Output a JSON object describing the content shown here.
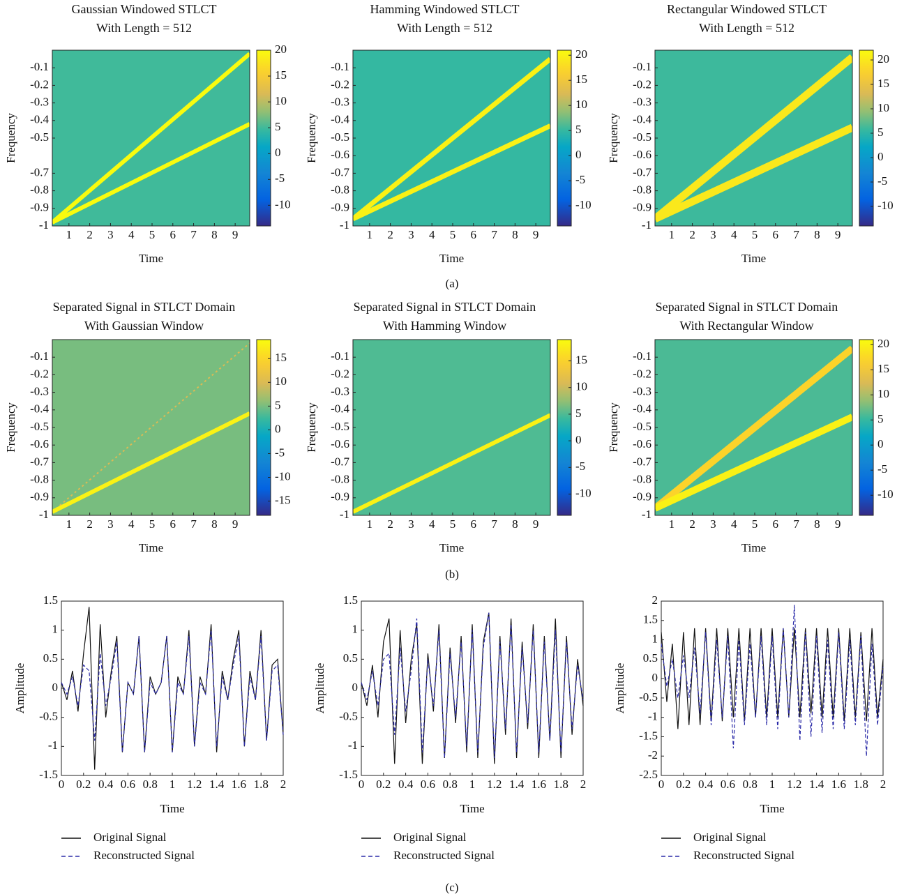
{
  "panel_labels": [
    "(a)",
    "(b)",
    "(c)"
  ],
  "chart_data": [
    {
      "type": "heatmap",
      "title": [
        "Gaussian Windowed STLCT",
        "With Length = 512"
      ],
      "xlabel": "Time",
      "ylabel": "Frequency",
      "colormap": "parula",
      "xlim": [
        0.2,
        9.7
      ],
      "ylim": [
        -1,
        0
      ],
      "xticks": [
        1,
        2,
        3,
        4,
        5,
        6,
        7,
        8,
        9
      ],
      "yticks": [
        -0.1,
        -0.2,
        -0.3,
        -0.4,
        -0.5,
        -0.7,
        -0.8,
        -0.9,
        -1
      ],
      "clim": [
        -14,
        20
      ],
      "cticks": [
        20,
        15,
        10,
        5,
        0,
        -5,
        -10
      ],
      "background": 5,
      "ridges": [
        {
          "x": [
            0.2,
            9.7
          ],
          "y": [
            -0.98,
            -0.02
          ],
          "value": 20
        },
        {
          "x": [
            0.2,
            9.7
          ],
          "y": [
            -0.98,
            -0.42
          ],
          "value": 20
        }
      ]
    },
    {
      "type": "heatmap",
      "title": [
        "Hamming Windowed STLCT",
        "With Length = 512"
      ],
      "xlabel": "Time",
      "ylabel": "Frequency",
      "colormap": "parula",
      "xlim": [
        0.2,
        9.7
      ],
      "ylim": [
        -1,
        0
      ],
      "xticks": [
        1,
        2,
        3,
        4,
        5,
        6,
        7,
        8,
        9
      ],
      "yticks": [
        -0.1,
        -0.2,
        -0.3,
        -0.4,
        -0.5,
        -0.6,
        -0.7,
        -0.8,
        -0.9,
        -1
      ],
      "clim": [
        -14,
        21
      ],
      "cticks": [
        20,
        15,
        10,
        5,
        0,
        -5,
        -10
      ],
      "background": 5,
      "ridges": [
        {
          "x": [
            0.2,
            9.7
          ],
          "y": [
            -0.96,
            -0.05
          ],
          "value": 20
        },
        {
          "x": [
            0.2,
            9.7
          ],
          "y": [
            -0.96,
            -0.43
          ],
          "value": 20
        }
      ]
    },
    {
      "type": "heatmap",
      "title": [
        "Rectangular Windowed STLCT",
        "With Length = 512"
      ],
      "xlabel": "Time",
      "ylabel": "Frequency",
      "colormap": "parula",
      "xlim": [
        0.2,
        9.7
      ],
      "ylim": [
        -1,
        0
      ],
      "xticks": [
        1,
        2,
        3,
        4,
        5,
        6,
        7,
        8,
        9
      ],
      "yticks": [
        -0.1,
        -0.2,
        -0.3,
        -0.4,
        -0.5,
        -0.6,
        -0.7,
        -0.8,
        -0.9,
        -1
      ],
      "clim": [
        -14,
        22
      ],
      "cticks": [
        20,
        15,
        10,
        5,
        0,
        -5,
        -10
      ],
      "background": 6,
      "ridges": [
        {
          "x": [
            0.2,
            9.7
          ],
          "y": [
            -0.96,
            -0.04
          ],
          "value": 20
        },
        {
          "x": [
            0.2,
            9.7
          ],
          "y": [
            -0.96,
            -0.44
          ],
          "value": 20
        }
      ]
    },
    {
      "type": "heatmap",
      "title": [
        "Separated Signal in STLCT Domain",
        "With Gaussian Window"
      ],
      "xlabel": "Time",
      "ylabel": "Frequency",
      "colormap": "parula",
      "xlim": [
        0.2,
        9.7
      ],
      "ylim": [
        -1,
        0
      ],
      "xticks": [
        1,
        2,
        3,
        4,
        5,
        6,
        7,
        8,
        9
      ],
      "yticks": [
        -0.1,
        -0.2,
        -0.3,
        -0.4,
        -0.5,
        -0.6,
        -0.7,
        -0.8,
        -0.9,
        -1
      ],
      "clim": [
        -18,
        19
      ],
      "cticks": [
        15,
        10,
        5,
        0,
        -5,
        -10,
        -15
      ],
      "background": 5,
      "ridges": [
        {
          "x": [
            0.2,
            9.7
          ],
          "y": [
            -0.98,
            -0.02
          ],
          "value": 10
        },
        {
          "x": [
            0.2,
            9.7
          ],
          "y": [
            -0.98,
            -0.42
          ],
          "value": 18
        }
      ]
    },
    {
      "type": "heatmap",
      "title": [
        "Separated Signal in STLCT Domain",
        "With Hamming Window"
      ],
      "xlabel": "Time",
      "ylabel": "Frequency",
      "colormap": "parula",
      "xlim": [
        0.2,
        9.7
      ],
      "ylim": [
        -1,
        0
      ],
      "xticks": [
        1,
        2,
        3,
        4,
        5,
        6,
        7,
        8,
        9
      ],
      "yticks": [
        -0.1,
        -0.2,
        -0.3,
        -0.4,
        -0.5,
        -0.6,
        -0.7,
        -0.8,
        -0.9,
        -1
      ],
      "clim": [
        -14,
        19
      ],
      "cticks": [
        15,
        10,
        5,
        0,
        -5,
        -10
      ],
      "background": 5,
      "ridges": [
        {
          "x": [
            0.2,
            9.7
          ],
          "y": [
            -0.98,
            -0.43
          ],
          "value": 18
        }
      ]
    },
    {
      "type": "heatmap",
      "title": [
        "Separated Signal in STLCT Domain",
        "With Rectangular Window"
      ],
      "xlabel": "Time",
      "ylabel": "Frequency",
      "colormap": "parula",
      "xlim": [
        0.2,
        9.7
      ],
      "ylim": [
        -1,
        0
      ],
      "xticks": [
        1,
        2,
        3,
        4,
        5,
        6,
        7,
        8,
        9
      ],
      "yticks": [
        -0.1,
        -0.2,
        -0.3,
        -0.4,
        -0.5,
        -0.6,
        -0.7,
        -0.8,
        -0.9,
        -1
      ],
      "clim": [
        -14,
        21
      ],
      "cticks": [
        20,
        15,
        10,
        5,
        0,
        -5,
        -10
      ],
      "background": 6,
      "ridges": [
        {
          "x": [
            0.2,
            9.7
          ],
          "y": [
            -0.96,
            -0.05
          ],
          "value": 17
        },
        {
          "x": [
            0.2,
            9.7
          ],
          "y": [
            -0.96,
            -0.44
          ],
          "value": 20
        }
      ]
    },
    {
      "type": "line",
      "xlabel": "Time",
      "ylabel": "Amplitude",
      "xlim": [
        0,
        2
      ],
      "ylim": [
        -1.5,
        1.5
      ],
      "xticks": [
        0,
        0.2,
        0.4,
        0.6,
        0.8,
        1,
        1.2,
        1.4,
        1.6,
        1.8,
        2
      ],
      "yticks": [
        -1.5,
        -1,
        -0.5,
        0,
        0.5,
        1,
        1.5
      ],
      "x": [
        0,
        0.05,
        0.1,
        0.15,
        0.2,
        0.25,
        0.3,
        0.35,
        0.4,
        0.45,
        0.5,
        0.55,
        0.6,
        0.65,
        0.7,
        0.75,
        0.8,
        0.85,
        0.9,
        0.95,
        1,
        1.05,
        1.1,
        1.15,
        1.2,
        1.25,
        1.3,
        1.35,
        1.4,
        1.45,
        1.5,
        1.55,
        1.6,
        1.65,
        1.7,
        1.75,
        1.8,
        1.85,
        1.9,
        1.95,
        2
      ],
      "series": [
        {
          "name": "Original Signal",
          "color": "#111111",
          "dashed": false,
          "values": [
            0.1,
            -0.2,
            0.3,
            -0.4,
            0.6,
            1.4,
            -1.4,
            1.1,
            -0.5,
            0.3,
            0.9,
            -1.1,
            0.1,
            -0.1,
            0.9,
            -1.1,
            0.2,
            -0.1,
            0.1,
            0.9,
            -1.1,
            0.2,
            -0.1,
            1.0,
            -1.0,
            0.2,
            -0.1,
            1.1,
            -1.1,
            0.3,
            -0.2,
            0.5,
            1.0,
            -1.0,
            0.3,
            -0.2,
            1.0,
            -0.9,
            0.4,
            0.5,
            -0.8
          ]
        },
        {
          "name": "Reconstructed Signal",
          "color": "#2b2ba8",
          "dashed": true,
          "values": [
            0.1,
            -0.1,
            0.2,
            -0.3,
            0.4,
            0.3,
            -0.9,
            0.6,
            -0.3,
            0.2,
            0.8,
            -1.1,
            0.1,
            -0.1,
            0.9,
            -1.1,
            0.1,
            -0.1,
            0.1,
            0.9,
            -1.1,
            0.1,
            -0.1,
            0.9,
            -1.0,
            0.1,
            -0.1,
            1.0,
            -1.0,
            0.2,
            -0.2,
            0.4,
            0.9,
            -1.0,
            0.2,
            -0.2,
            0.9,
            -0.9,
            0.3,
            0.4,
            -0.8
          ]
        }
      ]
    },
    {
      "type": "line",
      "xlabel": "Time",
      "ylabel": "Amplitude",
      "xlim": [
        0,
        2
      ],
      "ylim": [
        -1.5,
        1.5
      ],
      "xticks": [
        0,
        0.2,
        0.4,
        0.6,
        0.8,
        1,
        1.2,
        1.4,
        1.6,
        1.8,
        2
      ],
      "yticks": [
        -1.5,
        -1,
        -0.5,
        0,
        0.5,
        1,
        1.5
      ],
      "x": [
        0,
        0.05,
        0.1,
        0.15,
        0.2,
        0.25,
        0.3,
        0.35,
        0.4,
        0.45,
        0.5,
        0.55,
        0.6,
        0.65,
        0.7,
        0.75,
        0.8,
        0.85,
        0.9,
        0.95,
        1,
        1.05,
        1.1,
        1.15,
        1.2,
        1.25,
        1.3,
        1.35,
        1.4,
        1.45,
        1.5,
        1.55,
        1.6,
        1.65,
        1.7,
        1.75,
        1.8,
        1.85,
        1.9,
        1.95,
        2
      ],
      "series": [
        {
          "name": "Original Signal",
          "color": "#111111",
          "dashed": false,
          "values": [
            0.1,
            -0.3,
            0.4,
            -0.5,
            0.8,
            1.2,
            -1.3,
            1.0,
            -0.6,
            0.5,
            1.1,
            -1.3,
            0.6,
            -0.4,
            1.1,
            -1.2,
            0.7,
            -0.6,
            0.9,
            -1.1,
            1.1,
            -1.2,
            0.8,
            1.3,
            -1.3,
            0.9,
            -0.8,
            1.2,
            -1.2,
            0.8,
            -0.7,
            1.1,
            -1.2,
            0.9,
            -0.9,
            1.2,
            -1.2,
            0.9,
            -0.8,
            0.5,
            -0.3
          ]
        },
        {
          "name": "Reconstructed Signal",
          "color": "#2b2ba8",
          "dashed": true,
          "values": [
            0.1,
            -0.2,
            0.3,
            -0.3,
            0.5,
            0.6,
            -0.8,
            0.7,
            -0.4,
            0.3,
            1.2,
            -1.1,
            0.5,
            -0.3,
            1.0,
            -1.2,
            0.6,
            -0.5,
            0.8,
            -1.0,
            1.0,
            -1.1,
            0.7,
            1.3,
            -1.2,
            0.8,
            -0.7,
            1.1,
            -1.1,
            0.7,
            -0.6,
            1.0,
            -1.1,
            0.8,
            -0.9,
            1.0,
            -1.1,
            0.8,
            -0.7,
            0.4,
            -0.2
          ]
        }
      ]
    },
    {
      "type": "line",
      "xlabel": "Time",
      "ylabel": "Amplitude",
      "xlim": [
        0,
        2
      ],
      "ylim": [
        -2.5,
        2
      ],
      "xticks": [
        0,
        0.2,
        0.4,
        0.6,
        0.8,
        1,
        1.2,
        1.4,
        1.6,
        1.8,
        2
      ],
      "yticks": [
        -2.5,
        -2,
        -1.5,
        -1,
        -0.5,
        0,
        0.5,
        1,
        1.5,
        2
      ],
      "x": [
        0,
        0.05,
        0.1,
        0.15,
        0.2,
        0.25,
        0.3,
        0.35,
        0.4,
        0.45,
        0.5,
        0.55,
        0.6,
        0.65,
        0.7,
        0.75,
        0.8,
        0.85,
        0.9,
        0.95,
        1,
        1.05,
        1.1,
        1.15,
        1.2,
        1.25,
        1.3,
        1.35,
        1.4,
        1.45,
        1.5,
        1.55,
        1.6,
        1.65,
        1.7,
        1.75,
        1.8,
        1.85,
        1.9,
        1.95,
        2
      ],
      "series": [
        {
          "name": "Original Signal",
          "color": "#111111",
          "dashed": false,
          "values": [
            1.2,
            -0.6,
            0.9,
            -1.3,
            1.2,
            -1.2,
            1.3,
            -1.2,
            1.3,
            -1.1,
            1.3,
            -1.1,
            1.3,
            -1.0,
            1.3,
            -1.1,
            1.3,
            -1.0,
            1.3,
            -1.0,
            1.3,
            -1.0,
            1.3,
            -1.0,
            1.3,
            -1.0,
            1.3,
            -0.9,
            1.3,
            -1.0,
            1.3,
            -1.0,
            1.3,
            -1.1,
            1.3,
            -1.0,
            1.2,
            -1.1,
            1.3,
            -1.0,
            0.5
          ]
        },
        {
          "name": "Reconstructed Signal",
          "color": "#2b2ba8",
          "dashed": true,
          "values": [
            0.9,
            -0.2,
            0.5,
            -0.5,
            0.6,
            -0.5,
            0.8,
            -0.9,
            1.2,
            -1.2,
            1.0,
            -1.0,
            1.1,
            -1.8,
            1.0,
            -1.2,
            0.9,
            -1.0,
            1.1,
            -1.2,
            1.1,
            -1.3,
            1.3,
            -1.0,
            1.9,
            -1.6,
            1.2,
            -1.5,
            1.1,
            -1.4,
            1.0,
            -1.3,
            1.2,
            -1.3,
            1.0,
            -1.2,
            1.1,
            -2.0,
            0.9,
            -1.2,
            0.3
          ]
        }
      ]
    }
  ]
}
